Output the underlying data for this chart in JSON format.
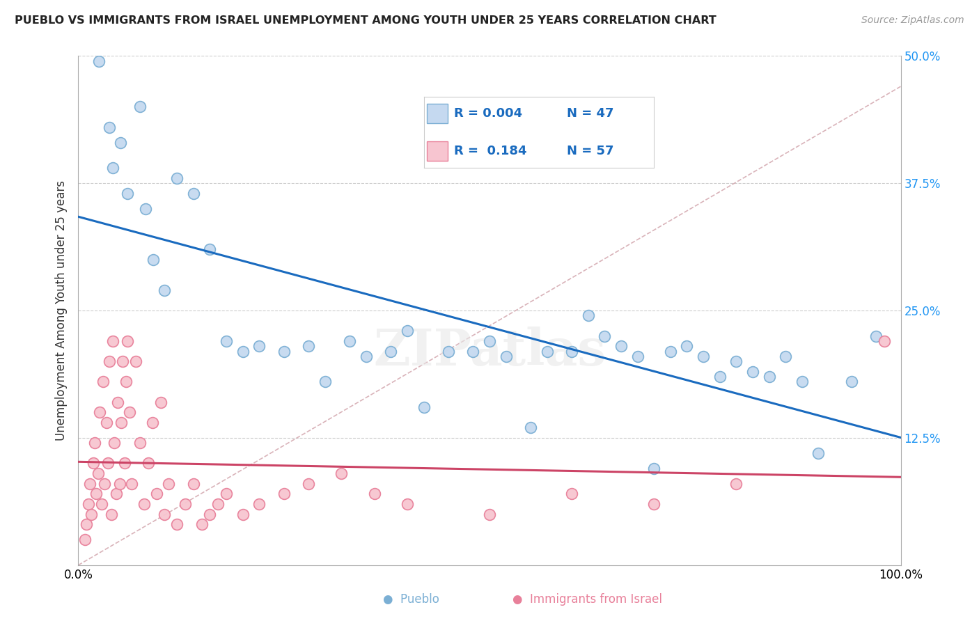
{
  "title": "PUEBLO VS IMMIGRANTS FROM ISRAEL UNEMPLOYMENT AMONG YOUTH UNDER 25 YEARS CORRELATION CHART",
  "source": "Source: ZipAtlas.com",
  "ylabel": "Unemployment Among Youth under 25 years",
  "xlim": [
    0,
    100
  ],
  "ylim": [
    0,
    50
  ],
  "pueblo_color": "#c5d9f0",
  "pueblo_edge_color": "#7bafd4",
  "israel_color": "#f7c5d0",
  "israel_edge_color": "#e8809a",
  "pueblo_trend_color": "#1a6bbf",
  "israel_trend_color": "#cc4466",
  "diag_line_color": "#d0a0a8",
  "legend_R_pueblo": "0.004",
  "legend_N_pueblo": "47",
  "legend_R_israel": "0.184",
  "legend_N_israel": "57",
  "pueblo_x": [
    2.5,
    3.8,
    4.2,
    5.1,
    6.0,
    7.5,
    8.2,
    9.1,
    10.5,
    12.0,
    14.0,
    16.0,
    18.0,
    20.0,
    22.0,
    25.0,
    28.0,
    30.0,
    33.0,
    35.0,
    38.0,
    40.0,
    42.0,
    45.0,
    48.0,
    50.0,
    52.0,
    55.0,
    57.0,
    60.0,
    62.0,
    64.0,
    66.0,
    68.0,
    70.0,
    72.0,
    74.0,
    76.0,
    78.0,
    80.0,
    82.0,
    84.0,
    86.0,
    88.0,
    90.0,
    94.0,
    97.0
  ],
  "pueblo_y": [
    49.5,
    43.0,
    39.0,
    41.5,
    36.5,
    45.0,
    35.0,
    30.0,
    27.0,
    38.0,
    36.5,
    31.0,
    22.0,
    21.0,
    21.5,
    21.0,
    21.5,
    18.0,
    22.0,
    20.5,
    21.0,
    23.0,
    15.5,
    21.0,
    21.0,
    22.0,
    20.5,
    13.5,
    21.0,
    21.0,
    24.5,
    22.5,
    21.5,
    20.5,
    9.5,
    21.0,
    21.5,
    20.5,
    18.5,
    20.0,
    19.0,
    18.5,
    20.5,
    18.0,
    11.0,
    18.0,
    22.5
  ],
  "israel_x": [
    0.8,
    1.0,
    1.2,
    1.4,
    1.6,
    1.8,
    2.0,
    2.2,
    2.4,
    2.6,
    2.8,
    3.0,
    3.2,
    3.4,
    3.6,
    3.8,
    4.0,
    4.2,
    4.4,
    4.6,
    4.8,
    5.0,
    5.2,
    5.4,
    5.6,
    5.8,
    6.0,
    6.2,
    6.5,
    7.0,
    7.5,
    8.0,
    8.5,
    9.0,
    9.5,
    10.0,
    10.5,
    11.0,
    12.0,
    13.0,
    14.0,
    15.0,
    16.0,
    17.0,
    18.0,
    20.0,
    22.0,
    25.0,
    28.0,
    32.0,
    36.0,
    40.0,
    50.0,
    60.0,
    70.0,
    80.0,
    98.0
  ],
  "israel_y": [
    2.5,
    4.0,
    6.0,
    8.0,
    5.0,
    10.0,
    12.0,
    7.0,
    9.0,
    15.0,
    6.0,
    18.0,
    8.0,
    14.0,
    10.0,
    20.0,
    5.0,
    22.0,
    12.0,
    7.0,
    16.0,
    8.0,
    14.0,
    20.0,
    10.0,
    18.0,
    22.0,
    15.0,
    8.0,
    20.0,
    12.0,
    6.0,
    10.0,
    14.0,
    7.0,
    16.0,
    5.0,
    8.0,
    4.0,
    6.0,
    8.0,
    4.0,
    5.0,
    6.0,
    7.0,
    5.0,
    6.0,
    7.0,
    8.0,
    9.0,
    7.0,
    6.0,
    5.0,
    7.0,
    6.0,
    8.0,
    22.0
  ],
  "background_color": "#ffffff",
  "plot_bg_color": "#ffffff",
  "grid_color": "#cccccc"
}
